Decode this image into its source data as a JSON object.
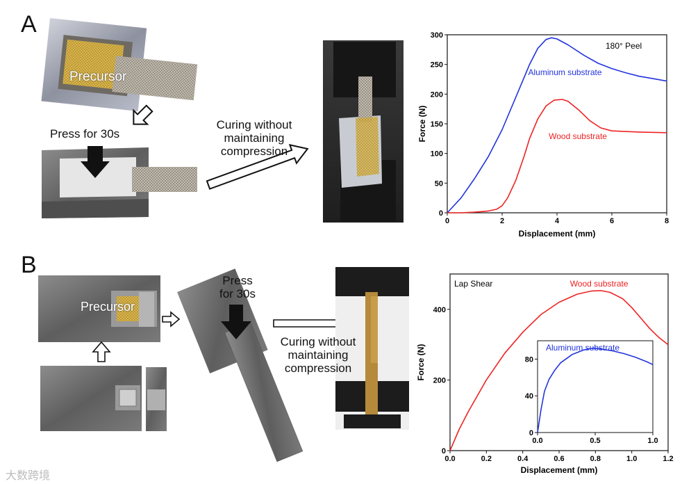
{
  "panels": {
    "a": {
      "letter": "A",
      "precursor_label": "Precursor",
      "press_label": "Press for 30s",
      "curing_label_l1": "Curing without",
      "curing_label_l2": "maintaining",
      "curing_label_l3": "compression"
    },
    "b": {
      "letter": "B",
      "precursor_label": "Precursor",
      "press_label_l1": "Press",
      "press_label_l2": "for 30s",
      "curing_label_l1": "Curing without",
      "curing_label_l2": "maintaining",
      "curing_label_l3": "compression"
    }
  },
  "watermark": "大数跨境",
  "colors": {
    "blue": "#2233dd",
    "red": "#ee2222"
  },
  "chart_data": [
    {
      "type": "line",
      "annotation": "180° Peel",
      "xlabel": "Displacement (mm)",
      "ylabel": "Force (N)",
      "xlim": [
        0,
        8
      ],
      "ylim": [
        0,
        300
      ],
      "xticks": [
        0,
        2,
        4,
        6,
        8
      ],
      "yticks": [
        0,
        50,
        100,
        150,
        200,
        250,
        300
      ],
      "series": [
        {
          "name": "Aluminum substrate",
          "color": "#2233dd",
          "x": [
            0,
            0.5,
            1,
            1.5,
            2,
            2.5,
            3,
            3.3,
            3.6,
            3.8,
            4.0,
            4.4,
            5,
            5.5,
            6,
            6.5,
            7,
            7.5,
            8
          ],
          "y": [
            0,
            25,
            58,
            95,
            140,
            195,
            250,
            277,
            292,
            295,
            293,
            283,
            265,
            252,
            243,
            236,
            230,
            226,
            222
          ]
        },
        {
          "name": "Wood substrate",
          "color": "#ee2222",
          "x": [
            0,
            0.5,
            1,
            1.5,
            1.8,
            2,
            2.2,
            2.5,
            2.8,
            3,
            3.3,
            3.6,
            3.9,
            4.2,
            4.4,
            4.8,
            5.2,
            5.6,
            6,
            7,
            8
          ],
          "y": [
            0,
            0,
            1,
            3,
            6,
            12,
            25,
            55,
            95,
            125,
            158,
            180,
            190,
            191,
            188,
            173,
            155,
            143,
            138,
            136,
            135
          ]
        }
      ]
    },
    {
      "type": "line",
      "annotation": "Lap Shear",
      "xlabel": "Displacement (mm)",
      "ylabel": "Force (N)",
      "xlim": [
        0,
        1.2
      ],
      "ylim": [
        0,
        500
      ],
      "xticks": [
        0.0,
        0.2,
        0.4,
        0.6,
        0.8,
        1.0,
        1.2
      ],
      "yticks": [
        0,
        200,
        400
      ],
      "series": [
        {
          "name": "Wood substrate",
          "color": "#ee2222",
          "x": [
            0,
            0.05,
            0.1,
            0.2,
            0.3,
            0.4,
            0.5,
            0.6,
            0.7,
            0.78,
            0.83,
            0.88,
            0.95,
            1.0,
            1.05,
            1.1,
            1.15,
            1.2
          ],
          "y": [
            0,
            60,
            110,
            200,
            275,
            335,
            385,
            420,
            443,
            452,
            453,
            448,
            430,
            405,
            375,
            345,
            320,
            300
          ]
        }
      ],
      "inset": {
        "xlim": [
          0,
          1.0
        ],
        "ylim": [
          0,
          100
        ],
        "xticks": [
          0.0,
          0.5,
          1.0
        ],
        "yticks": [
          0,
          40,
          80
        ],
        "series": [
          {
            "name": "Aluminum substrate",
            "color": "#2233dd",
            "x": [
              0,
              0.03,
              0.06,
              0.1,
              0.15,
              0.2,
              0.3,
              0.4,
              0.48,
              0.55,
              0.65,
              0.75,
              0.85,
              0.95,
              1.0
            ],
            "y": [
              0,
              25,
              45,
              58,
              68,
              76,
              85,
              90,
              92,
              91,
              89,
              86,
              82,
              77,
              74
            ]
          }
        ]
      }
    }
  ]
}
